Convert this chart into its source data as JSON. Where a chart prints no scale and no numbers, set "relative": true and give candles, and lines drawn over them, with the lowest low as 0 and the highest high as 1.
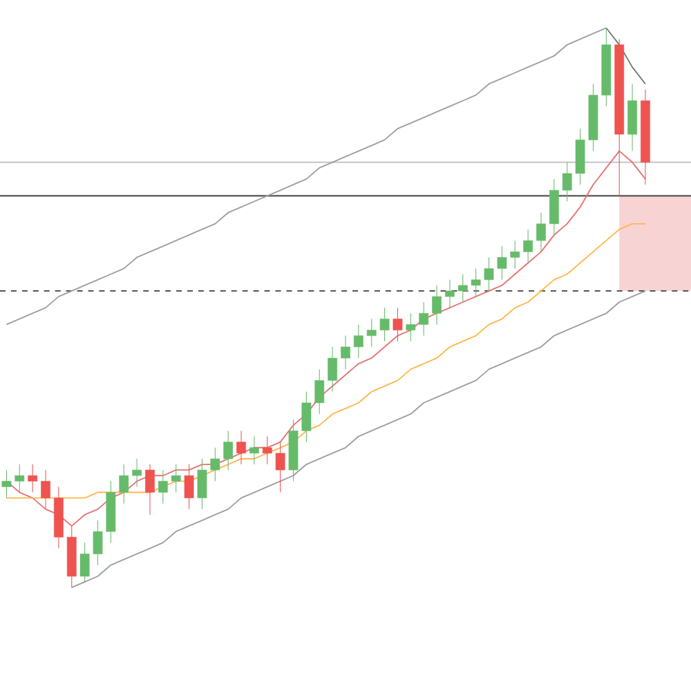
{
  "chart_data": {
    "type": "candlestick",
    "relative": true,
    "categories": [
      null,
      null,
      null,
      null,
      null,
      null,
      null,
      null,
      null,
      null,
      null,
      null,
      null,
      null,
      null,
      null,
      null,
      null,
      null,
      null,
      null,
      null,
      null,
      null,
      null,
      null,
      null,
      null,
      null,
      null,
      null,
      null,
      null,
      null,
      null,
      null,
      null,
      null,
      null,
      null,
      null,
      null,
      null,
      null,
      null,
      null,
      null,
      null,
      null,
      null
    ],
    "ohlc": [
      [
        0.18,
        0.21,
        0.16,
        0.19
      ],
      [
        0.19,
        0.22,
        0.17,
        0.2
      ],
      [
        0.2,
        0.22,
        0.17,
        0.19
      ],
      [
        0.19,
        0.21,
        0.14,
        0.16
      ],
      [
        0.16,
        0.18,
        0.07,
        0.09
      ],
      [
        0.09,
        0.11,
        0.0,
        0.02
      ],
      [
        0.02,
        0.08,
        0.01,
        0.06
      ],
      [
        0.06,
        0.12,
        0.04,
        0.1
      ],
      [
        0.1,
        0.19,
        0.08,
        0.17
      ],
      [
        0.17,
        0.22,
        0.15,
        0.2
      ],
      [
        0.2,
        0.23,
        0.18,
        0.21
      ],
      [
        0.21,
        0.22,
        0.13,
        0.17
      ],
      [
        0.17,
        0.21,
        0.15,
        0.19
      ],
      [
        0.19,
        0.22,
        0.17,
        0.2
      ],
      [
        0.2,
        0.22,
        0.14,
        0.16
      ],
      [
        0.16,
        0.23,
        0.14,
        0.21
      ],
      [
        0.21,
        0.25,
        0.19,
        0.23
      ],
      [
        0.23,
        0.28,
        0.21,
        0.26
      ],
      [
        0.26,
        0.28,
        0.22,
        0.24
      ],
      [
        0.24,
        0.27,
        0.22,
        0.25
      ],
      [
        0.25,
        0.27,
        0.22,
        0.24
      ],
      [
        0.24,
        0.26,
        0.17,
        0.21
      ],
      [
        0.21,
        0.3,
        0.19,
        0.28
      ],
      [
        0.28,
        0.35,
        0.26,
        0.33
      ],
      [
        0.33,
        0.39,
        0.31,
        0.37
      ],
      [
        0.37,
        0.43,
        0.35,
        0.41
      ],
      [
        0.41,
        0.45,
        0.39,
        0.43
      ],
      [
        0.43,
        0.47,
        0.41,
        0.45
      ],
      [
        0.45,
        0.48,
        0.43,
        0.46
      ],
      [
        0.46,
        0.5,
        0.44,
        0.48
      ],
      [
        0.48,
        0.5,
        0.44,
        0.46
      ],
      [
        0.46,
        0.49,
        0.44,
        0.47
      ],
      [
        0.47,
        0.51,
        0.45,
        0.49
      ],
      [
        0.49,
        0.54,
        0.47,
        0.52
      ],
      [
        0.52,
        0.55,
        0.5,
        0.53
      ],
      [
        0.53,
        0.56,
        0.51,
        0.54
      ],
      [
        0.54,
        0.57,
        0.52,
        0.55
      ],
      [
        0.55,
        0.59,
        0.53,
        0.57
      ],
      [
        0.57,
        0.61,
        0.55,
        0.59
      ],
      [
        0.59,
        0.62,
        0.57,
        0.6
      ],
      [
        0.6,
        0.64,
        0.58,
        0.62
      ],
      [
        0.62,
        0.67,
        0.6,
        0.65
      ],
      [
        0.65,
        0.73,
        0.63,
        0.71
      ],
      [
        0.71,
        0.76,
        0.69,
        0.74
      ],
      [
        0.74,
        0.82,
        0.72,
        0.8
      ],
      [
        0.8,
        0.9,
        0.78,
        0.88
      ],
      [
        0.88,
        1.0,
        0.86,
        0.97
      ],
      [
        0.97,
        0.98,
        0.7,
        0.81
      ],
      [
        0.81,
        0.9,
        0.78,
        0.87
      ],
      [
        0.87,
        0.89,
        0.72,
        0.76
      ]
    ],
    "colors": [
      "#66bb6a",
      "#66bb6a",
      "#ef5350",
      "#ef5350",
      "#ef5350",
      "#ef5350",
      "#66bb6a",
      "#66bb6a",
      "#66bb6a",
      "#66bb6a",
      "#66bb6a",
      "#ef5350",
      "#66bb6a",
      "#66bb6a",
      "#ef5350",
      "#66bb6a",
      "#66bb6a",
      "#66bb6a",
      "#ef5350",
      "#66bb6a",
      "#ef5350",
      "#ef5350",
      "#66bb6a",
      "#66bb6a",
      "#66bb6a",
      "#66bb6a",
      "#66bb6a",
      "#66bb6a",
      "#66bb6a",
      "#66bb6a",
      "#ef5350",
      "#66bb6a",
      "#66bb6a",
      "#66bb6a",
      "#66bb6a",
      "#66bb6a",
      "#66bb6a",
      "#66bb6a",
      "#66bb6a",
      "#66bb6a",
      "#66bb6a",
      "#66bb6a",
      "#66bb6a",
      "#66bb6a",
      "#66bb6a",
      "#66bb6a",
      "#66bb6a",
      "#ef5350",
      "#66bb6a",
      "#ef5350"
    ],
    "series": [
      {
        "type": "line",
        "color": "#e57373",
        "values": [
          0.19,
          0.17,
          0.16,
          0.14,
          0.13,
          0.11,
          0.13,
          0.14,
          0.16,
          0.17,
          0.19,
          0.2,
          0.2,
          0.21,
          0.21,
          0.22,
          0.22,
          0.23,
          0.24,
          0.25,
          0.25,
          0.26,
          0.29,
          0.31,
          0.34,
          0.36,
          0.38,
          0.4,
          0.41,
          0.43,
          0.45,
          0.46,
          0.48,
          0.49,
          0.5,
          0.51,
          0.52,
          0.53,
          0.54,
          0.56,
          0.58,
          0.6,
          0.63,
          0.65,
          0.68,
          0.72,
          0.75,
          0.78,
          0.76,
          0.73
        ]
      },
      {
        "type": "line",
        "color": "#ffb74d",
        "values": [
          0.16,
          0.16,
          0.16,
          0.16,
          0.16,
          0.16,
          0.16,
          0.17,
          0.17,
          0.17,
          0.17,
          0.17,
          0.18,
          0.19,
          0.19,
          0.2,
          0.21,
          0.22,
          0.23,
          0.23,
          0.24,
          0.25,
          0.26,
          0.28,
          0.29,
          0.31,
          0.32,
          0.33,
          0.35,
          0.36,
          0.37,
          0.39,
          0.4,
          0.41,
          0.43,
          0.44,
          0.45,
          0.47,
          0.48,
          0.5,
          0.51,
          0.53,
          0.55,
          0.56,
          0.58,
          0.6,
          0.62,
          0.64,
          0.65,
          0.65
        ]
      },
      {
        "type": "line",
        "color": "#9e9e9e",
        "values": [
          0.47,
          0.48,
          0.49,
          0.5,
          0.52,
          0.53,
          0.54,
          0.55,
          0.56,
          0.57,
          0.59,
          0.6,
          0.61,
          0.62,
          0.63,
          0.64,
          0.65,
          0.67,
          0.68,
          0.69,
          0.7,
          0.71,
          0.72,
          0.73,
          0.75,
          0.76,
          0.77,
          0.78,
          0.79,
          0.8,
          0.82,
          0.83,
          0.84,
          0.85,
          0.86,
          0.87,
          0.88,
          0.9,
          0.91,
          0.92,
          0.93,
          0.94,
          0.95,
          0.97,
          0.98,
          0.99,
          1.0,
          null,
          null,
          null
        ]
      },
      {
        "type": "line",
        "color": "#9e9e9e",
        "values": [
          null,
          null,
          null,
          null,
          null,
          0.0,
          0.01,
          0.02,
          0.04,
          0.05,
          0.06,
          0.07,
          0.08,
          0.1,
          0.11,
          0.12,
          0.13,
          0.14,
          0.16,
          0.17,
          0.18,
          0.19,
          0.2,
          0.22,
          0.23,
          0.24,
          0.25,
          0.27,
          0.28,
          0.29,
          0.3,
          0.31,
          0.33,
          0.34,
          0.35,
          0.36,
          0.37,
          0.39,
          0.4,
          0.41,
          0.42,
          0.43,
          0.45,
          0.46,
          0.47,
          0.48,
          0.49,
          0.51,
          0.52,
          0.53
        ]
      },
      {
        "type": "line",
        "color": "#757575",
        "values": [
          null,
          null,
          null,
          null,
          null,
          null,
          null,
          null,
          null,
          null,
          null,
          null,
          null,
          null,
          null,
          null,
          null,
          null,
          null,
          null,
          null,
          null,
          null,
          null,
          null,
          null,
          null,
          null,
          null,
          null,
          null,
          null,
          null,
          null,
          null,
          null,
          null,
          null,
          null,
          null,
          null,
          null,
          null,
          null,
          null,
          null,
          1.0,
          0.97,
          0.93,
          0.9
        ]
      }
    ],
    "ref_lines": [
      {
        "axis": "y",
        "value": 0.76,
        "color": "#cccccc"
      },
      {
        "axis": "y",
        "value": 0.7,
        "color": "#555555"
      },
      {
        "axis": "y",
        "value": 0.53,
        "color": "#555555",
        "line_style": "dashed"
      }
    ],
    "bands": [
      {
        "axis": "y",
        "from": 0.53,
        "to": 0.7,
        "color": "#f8d3d3"
      }
    ]
  }
}
